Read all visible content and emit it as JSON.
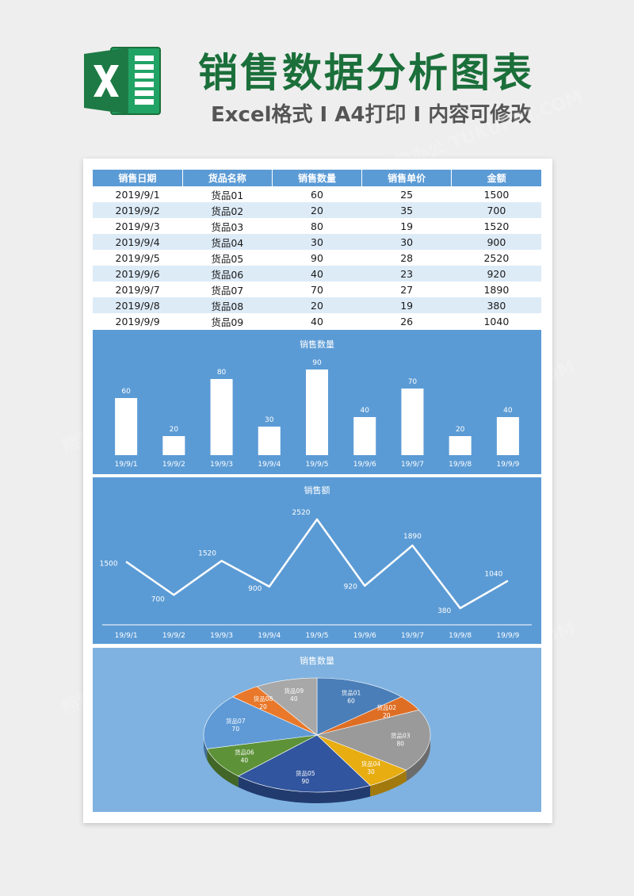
{
  "header": {
    "title": "销售数据分析图表",
    "subtitle": "Excel格式 I A4打印 I 内容可修改"
  },
  "table": {
    "headers": [
      "销售日期",
      "货品名称",
      "销售数量",
      "销售单价",
      "金额"
    ],
    "rows": [
      [
        "2019/9/1",
        "货品01",
        "60",
        "25",
        "1500"
      ],
      [
        "2019/9/2",
        "货品02",
        "20",
        "35",
        "700"
      ],
      [
        "2019/9/3",
        "货品03",
        "80",
        "19",
        "1520"
      ],
      [
        "2019/9/4",
        "货品04",
        "30",
        "30",
        "900"
      ],
      [
        "2019/9/5",
        "货品05",
        "90",
        "28",
        "2520"
      ],
      [
        "2019/9/6",
        "货品06",
        "40",
        "23",
        "920"
      ],
      [
        "2019/9/7",
        "货品07",
        "70",
        "27",
        "1890"
      ],
      [
        "2019/9/8",
        "货品08",
        "20",
        "19",
        "380"
      ],
      [
        "2019/9/9",
        "货品09",
        "40",
        "26",
        "1040"
      ]
    ]
  },
  "chart_data": [
    {
      "type": "bar",
      "title": "销售数量",
      "categories": [
        "19/9/1",
        "19/9/2",
        "19/9/3",
        "19/9/4",
        "19/9/5",
        "19/9/6",
        "19/9/7",
        "19/9/8",
        "19/9/9"
      ],
      "values": [
        60,
        20,
        80,
        30,
        90,
        40,
        70,
        20,
        40
      ],
      "ylim": [
        0,
        90
      ],
      "grid": false,
      "bar_color": "#ffffff"
    },
    {
      "type": "line",
      "title": "销售额",
      "categories": [
        "19/9/1",
        "19/9/2",
        "19/9/3",
        "19/9/4",
        "19/9/5",
        "19/9/6",
        "19/9/7",
        "19/9/8",
        "19/9/9"
      ],
      "values": [
        1500,
        700,
        1520,
        900,
        2520,
        920,
        1890,
        380,
        1040
      ],
      "ylim": [
        0,
        2520
      ],
      "grid": false,
      "line_color": "#ffffff"
    },
    {
      "type": "pie",
      "title": "销售数量",
      "labels": [
        "货品01",
        "货品02",
        "货品03",
        "货品04",
        "货品05",
        "货品06",
        "货品07",
        "货品08",
        "货品09"
      ],
      "values": [
        60,
        20,
        80,
        30,
        90,
        40,
        70,
        20,
        40
      ],
      "colors": [
        "#4a7eb8",
        "#df6e25",
        "#9a9a9a",
        "#e7ad11",
        "#31559e",
        "#5d9238",
        "#5f9ad6",
        "#e9782a",
        "#a8a8a8"
      ]
    }
  ],
  "colors": {
    "brand_green": "#1b6f3a",
    "header_blue": "#5b9bd5",
    "row_alt": "#ddebf7"
  }
}
